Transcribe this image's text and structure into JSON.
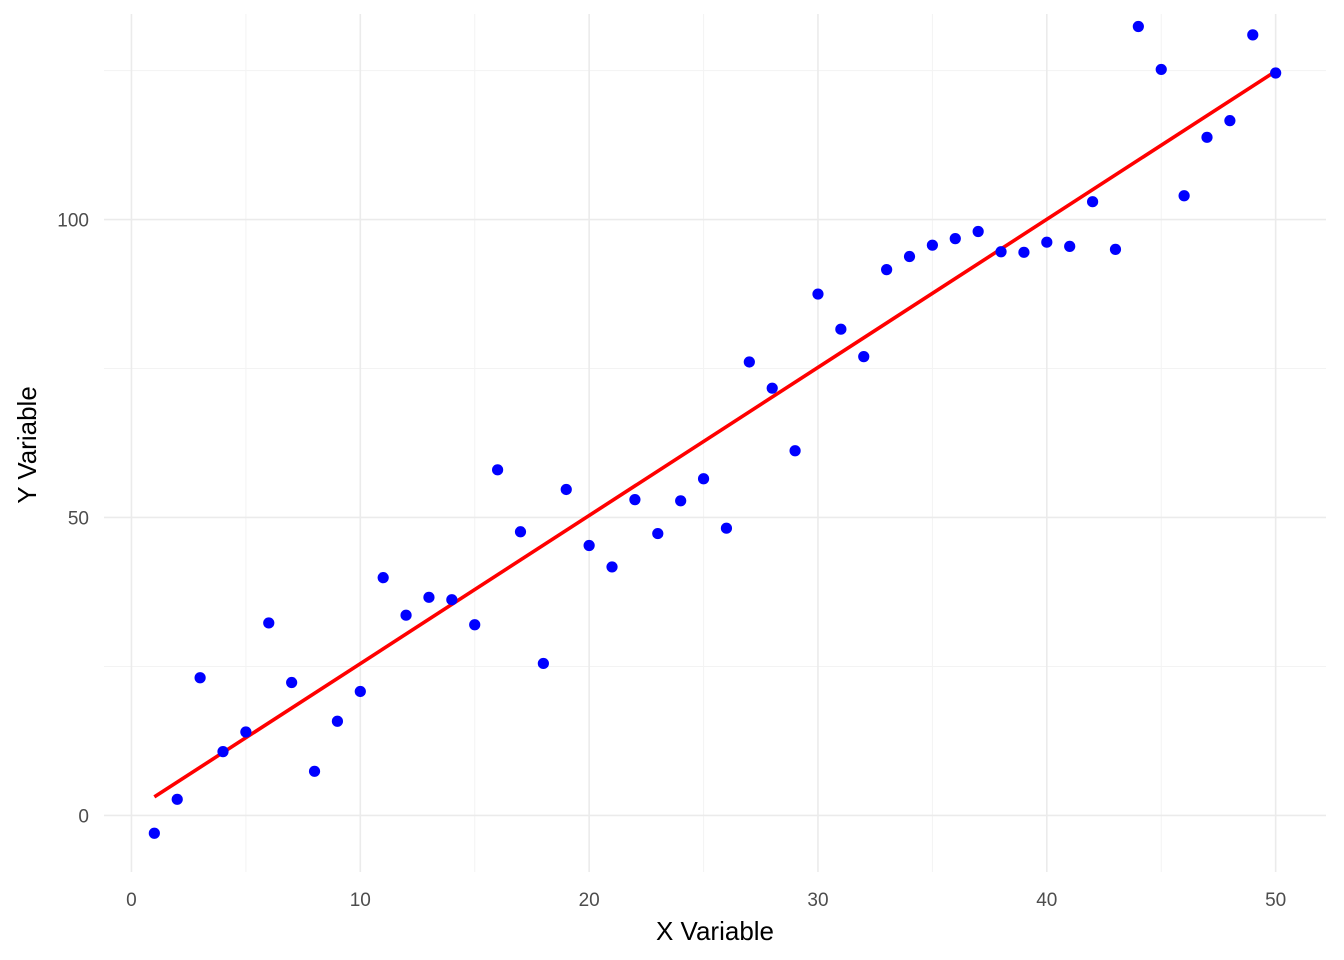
{
  "chart_data": {
    "type": "scatter",
    "xlabel": "X Variable",
    "ylabel": "Y Variable",
    "xlim": [
      -1.2,
      52.2
    ],
    "ylim": [
      -9.5,
      134.5
    ],
    "x_ticks": [
      0,
      10,
      20,
      30,
      40,
      50
    ],
    "x_tick_labels": [
      "0",
      "10",
      "20",
      "30",
      "40",
      "50"
    ],
    "x_minor_ticks": [
      5,
      15,
      25,
      35,
      45
    ],
    "y_ticks": [
      0,
      50,
      100
    ],
    "y_tick_labels": [
      "0",
      "50",
      "100"
    ],
    "y_minor_ticks": [
      25,
      75,
      125
    ],
    "grid": true,
    "legend": "none",
    "colors": {
      "points": "#0000ff",
      "fit_line": "#ff0000",
      "grid": "#ebebeb"
    },
    "series": [
      {
        "type": "scatter",
        "x": [
          1,
          2,
          3,
          4,
          5,
          6,
          7,
          8,
          9,
          10,
          11,
          12,
          13,
          14,
          15,
          16,
          17,
          18,
          19,
          20,
          21,
          22,
          23,
          24,
          25,
          26,
          27,
          28,
          29,
          30,
          31,
          32,
          33,
          34,
          35,
          36,
          37,
          38,
          39,
          40,
          41,
          42,
          43,
          44,
          45,
          46,
          47,
          48,
          49,
          50
        ],
        "y": [
          -3.0,
          2.7,
          23.1,
          10.7,
          14.0,
          32.3,
          22.3,
          7.4,
          15.8,
          20.8,
          39.9,
          33.6,
          36.6,
          36.2,
          32.0,
          58.0,
          47.6,
          25.5,
          54.7,
          45.3,
          41.7,
          53.0,
          47.3,
          52.8,
          56.5,
          48.2,
          76.1,
          71.7,
          61.2,
          87.5,
          81.6,
          77.0,
          91.6,
          93.8,
          95.7,
          96.8,
          98.0,
          94.6,
          94.5,
          96.2,
          95.5,
          103.0,
          95.0,
          132.4,
          125.2,
          104.0,
          113.8,
          116.6,
          131.0,
          124.6
        ]
      },
      {
        "type": "line",
        "x": [
          1,
          50
        ],
        "y": [
          3.1,
          124.9
        ]
      }
    ]
  }
}
